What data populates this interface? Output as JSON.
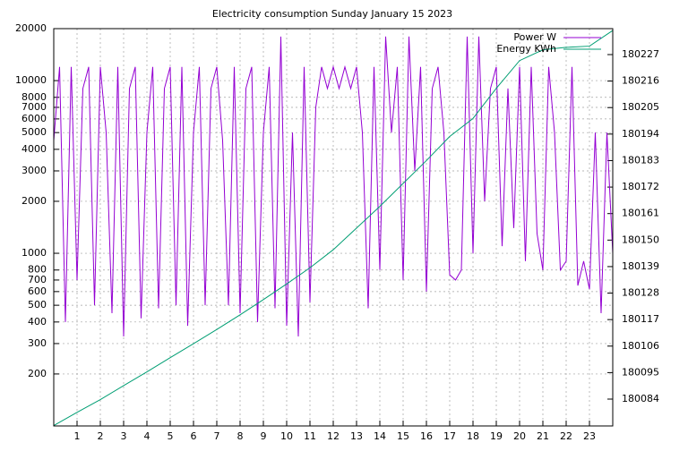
{
  "chart_data": {
    "type": "line",
    "title": "Electricity consumption Sunday January 15 2023",
    "x": [
      0,
      0.25,
      0.5,
      0.75,
      1,
      1.25,
      1.5,
      1.75,
      2,
      2.25,
      2.5,
      2.75,
      3,
      3.25,
      3.5,
      3.75,
      4,
      4.25,
      4.5,
      4.75,
      5,
      5.25,
      5.5,
      5.75,
      6,
      6.25,
      6.5,
      6.75,
      7,
      7.25,
      7.5,
      7.75,
      8,
      8.25,
      8.5,
      8.75,
      9,
      9.25,
      9.5,
      9.75,
      10,
      10.25,
      10.5,
      10.75,
      11,
      11.25,
      11.5,
      11.75,
      12,
      12.25,
      12.5,
      12.75,
      13,
      13.25,
      13.5,
      13.75,
      14,
      14.25,
      14.5,
      14.75,
      15,
      15.25,
      15.5,
      15.75,
      16,
      16.25,
      16.5,
      16.75,
      17,
      17.25,
      17.5,
      17.75,
      18,
      18.25,
      18.5,
      18.75,
      19,
      19.25,
      19.5,
      19.75,
      20,
      20.25,
      20.5,
      20.75,
      21,
      21.25,
      21.5,
      21.75,
      22,
      22.25,
      22.5,
      22.75,
      23,
      23.25,
      23.5,
      23.75,
      24
    ],
    "series": [
      {
        "name": "Power W",
        "color": "#9400d3",
        "values": [
          4500,
          12000,
          400,
          12000,
          700,
          9000,
          12000,
          500,
          12000,
          5000,
          450,
          12000,
          330,
          9000,
          12000,
          420,
          5000,
          12000,
          480,
          9000,
          12000,
          500,
          12000,
          380,
          5000,
          12000,
          500,
          9000,
          12000,
          4500,
          500,
          12000,
          450,
          9000,
          12000,
          400,
          5000,
          12000,
          480,
          18000,
          380,
          5000,
          330,
          12000,
          520,
          7000,
          12000,
          9000,
          12000,
          9000,
          12000,
          9000,
          12000,
          5000,
          480,
          12000,
          800,
          18000,
          5000,
          12000,
          700,
          18000,
          3000,
          12000,
          600,
          9000,
          12000,
          5000,
          750,
          700,
          800,
          18000,
          1000,
          18000,
          2000,
          9000,
          12000,
          1100,
          9000,
          1400,
          12000,
          900,
          12000,
          1300,
          800,
          12000,
          5000,
          800,
          900,
          12000,
          650,
          900,
          620,
          5000,
          450,
          5000,
          1000
        ]
      },
      {
        "name": "Energy KWh",
        "color": "#009e73",
        "axis": "y2",
        "x": [
          0,
          1,
          2,
          3,
          4,
          5,
          6,
          7,
          8,
          9,
          10,
          11,
          12,
          13,
          14,
          15,
          16,
          17,
          18,
          19,
          20,
          21,
          22,
          23,
          24
        ],
        "values": [
          180073.0,
          180078.5,
          180083.8,
          180089.6,
          180095.3,
          180101.2,
          180107.0,
          180112.9,
          180119.0,
          180125.3,
          180131.8,
          180138.5,
          180146.0,
          180155.0,
          180164.0,
          180173.5,
          180183.0,
          180193.0,
          180200.5,
          180213.0,
          180224.5,
          180229.0,
          180230.0,
          180230.5,
          180237.0
        ]
      }
    ],
    "xlim": [
      0,
      24
    ],
    "xticks": [
      1,
      2,
      3,
      4,
      5,
      6,
      7,
      8,
      9,
      10,
      11,
      12,
      13,
      14,
      15,
      16,
      17,
      18,
      19,
      20,
      21,
      22,
      23
    ],
    "ylim": [
      100,
      20000
    ],
    "log_y": true,
    "yticks": [
      200,
      300,
      400,
      500,
      600,
      700,
      800,
      1000,
      2000,
      3000,
      4000,
      5000,
      6000,
      7000,
      8000,
      10000,
      20000
    ],
    "y2lim": [
      180072.86,
      180237.77
    ],
    "y2ticks": [
      180084,
      180095,
      180106,
      180117,
      180128,
      180139,
      180150,
      180161,
      180172,
      180183,
      180194,
      180205,
      180216,
      180227
    ],
    "grid": true,
    "legend": "top-right"
  }
}
